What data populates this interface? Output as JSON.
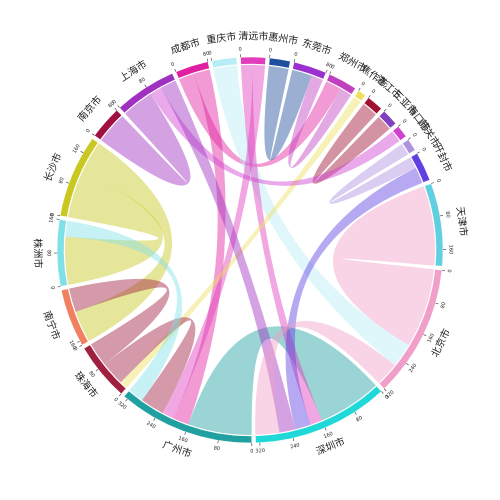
{
  "chart_data": {
    "type": "chord",
    "nodes": [
      {
        "name": "重庆市",
        "color": "#b8ecf7",
        "ticks": [
          0
        ]
      },
      {
        "name": "清远市",
        "color": "#e03cbc",
        "ticks": [
          0
        ]
      },
      {
        "name": "惠州市",
        "color": "#1f4e9c",
        "ticks": [
          0
        ]
      },
      {
        "name": "东莞市",
        "color": "#9b30d0",
        "ticks": [
          0,
          80
        ]
      },
      {
        "name": "郑州市",
        "color": "#c040c0",
        "ticks": [
          0
        ]
      },
      {
        "name": "焦作市",
        "color": "#f0e060",
        "ticks": [
          0
        ]
      },
      {
        "name": "湛江市",
        "color": "#a01030",
        "ticks": [
          0
        ]
      },
      {
        "name": "三亚市",
        "color": "#8040c0",
        "ticks": [
          0
        ]
      },
      {
        "name": "海口市",
        "color": "#d040d0",
        "ticks": [
          0
        ]
      },
      {
        "name": "韶关市",
        "color": "#b090e0",
        "ticks": [
          0
        ]
      },
      {
        "name": "开封市",
        "color": "#6040e0",
        "ticks": [
          0
        ]
      },
      {
        "name": "天津市",
        "color": "#60d0e0",
        "ticks": [
          0,
          80,
          160
        ]
      },
      {
        "name": "北京市",
        "color": "#f0a0c8",
        "ticks": [
          0,
          80,
          160,
          240,
          320
        ]
      },
      {
        "name": "深圳市",
        "color": "#20d8d8",
        "ticks": [
          0,
          80,
          160,
          240,
          320
        ]
      },
      {
        "name": "广州市",
        "color": "#20a0a0",
        "ticks": [
          0,
          80,
          160,
          240,
          320
        ]
      },
      {
        "name": "珠海市",
        "color": "#a02040",
        "ticks": [
          0,
          80,
          160
        ]
      },
      {
        "name": "南宁市",
        "color": "#f08060",
        "ticks": [
          0
        ]
      },
      {
        "name": "株洲市",
        "color": "#80e0e8",
        "ticks": [
          0,
          80,
          160
        ]
      },
      {
        "name": "长沙市",
        "color": "#c8c820",
        "ticks": [
          0,
          80,
          160
        ]
      },
      {
        "name": "南京市",
        "color": "#a01040",
        "ticks": [
          0,
          80
        ]
      },
      {
        "name": "上海市",
        "color": "#a030c0",
        "ticks": [
          0,
          80
        ]
      },
      {
        "name": "成都市",
        "color": "#e020a0",
        "ticks": [
          0,
          80
        ]
      }
    ],
    "links": [
      {
        "source": "广州市",
        "target": "深圳市",
        "value": 160
      },
      {
        "source": "北京市",
        "target": "天津市",
        "value": 200
      },
      {
        "source": "长沙市",
        "target": "株洲市",
        "value": 120
      },
      {
        "source": "长沙市",
        "target": "南宁市",
        "value": 80
      },
      {
        "source": "上海市",
        "target": "南京市",
        "value": 80
      },
      {
        "source": "成都市",
        "target": "郑州市",
        "value": 40
      },
      {
        "source": "成都市",
        "target": "广州市",
        "value": 40
      },
      {
        "source": "重庆市",
        "target": "北京市",
        "value": 60
      },
      {
        "source": "清远市",
        "target": "深圳市",
        "value": 30
      },
      {
        "source": "清远市",
        "target": "广州市",
        "value": 30
      },
      {
        "source": "惠州市",
        "target": "东莞市",
        "value": 50
      },
      {
        "source": "焦作市",
        "target": "珠海市",
        "value": 20
      },
      {
        "source": "湛江市",
        "target": "三亚市",
        "value": 40
      },
      {
        "source": "海口市",
        "target": "上海市",
        "value": 30
      },
      {
        "source": "韶关市",
        "target": "开封市",
        "value": 30
      },
      {
        "source": "珠海市",
        "target": "广州市",
        "value": 60
      },
      {
        "source": "株洲市",
        "target": "广州市",
        "value": 40
      },
      {
        "source": "开封市",
        "target": "深圳市",
        "value": 40
      },
      {
        "source": "上海市",
        "target": "深圳市",
        "value": 40
      },
      {
        "source": "北京市",
        "target": "深圳市",
        "value": 60
      },
      {
        "source": "郑州市",
        "target": "东莞市",
        "value": 30
      },
      {
        "source": "珠海市",
        "target": "南宁市",
        "value": 60
      },
      {
        "source": "成都市",
        "target": "广州市",
        "value": 0
      }
    ]
  }
}
